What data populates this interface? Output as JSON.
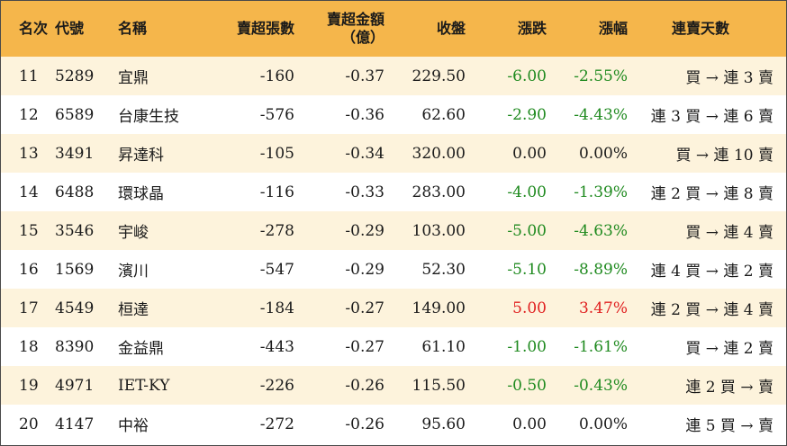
{
  "headers": {
    "rank": "名次",
    "code": "代號",
    "name": "名稱",
    "net_sell_lots": "賣超張數",
    "net_sell_amount_line1": "賣超金額",
    "net_sell_amount_line2": "（億）",
    "close": "收盤",
    "change": "漲跌",
    "change_pct": "漲幅",
    "streak": "連賣天數"
  },
  "rows": [
    {
      "rank": "11",
      "code": "5289",
      "name": "宜鼎",
      "lots": "-160",
      "amount": "-0.37",
      "close": "229.50",
      "change": "-6.00",
      "pct": "-2.55%",
      "dir": "neg",
      "streak": "買 → 連 3 賣"
    },
    {
      "rank": "12",
      "code": "6589",
      "name": "台康生技",
      "lots": "-576",
      "amount": "-0.36",
      "close": "62.60",
      "change": "-2.90",
      "pct": "-4.43%",
      "dir": "neg",
      "streak": "連 3 買 → 連 6 賣"
    },
    {
      "rank": "13",
      "code": "3491",
      "name": "昇達科",
      "lots": "-105",
      "amount": "-0.34",
      "close": "320.00",
      "change": "0.00",
      "pct": "0.00%",
      "dir": "zero",
      "streak": "買 → 連 10 賣"
    },
    {
      "rank": "14",
      "code": "6488",
      "name": "環球晶",
      "lots": "-116",
      "amount": "-0.33",
      "close": "283.00",
      "change": "-4.00",
      "pct": "-1.39%",
      "dir": "neg",
      "streak": "連 2 買 → 連 8 賣"
    },
    {
      "rank": "15",
      "code": "3546",
      "name": "宇峻",
      "lots": "-278",
      "amount": "-0.29",
      "close": "103.00",
      "change": "-5.00",
      "pct": "-4.63%",
      "dir": "neg",
      "streak": "買 → 連 4 賣"
    },
    {
      "rank": "16",
      "code": "1569",
      "name": "濱川",
      "lots": "-547",
      "amount": "-0.29",
      "close": "52.30",
      "change": "-5.10",
      "pct": "-8.89%",
      "dir": "neg",
      "streak": "連 4 買 → 連 2 賣"
    },
    {
      "rank": "17",
      "code": "4549",
      "name": "桓達",
      "lots": "-184",
      "amount": "-0.27",
      "close": "149.00",
      "change": "5.00",
      "pct": "3.47%",
      "dir": "pos",
      "streak": "連 2 買 → 連 4 賣"
    },
    {
      "rank": "18",
      "code": "8390",
      "name": "金益鼎",
      "lots": "-443",
      "amount": "-0.27",
      "close": "61.10",
      "change": "-1.00",
      "pct": "-1.61%",
      "dir": "neg",
      "streak": "買 → 連 2 賣"
    },
    {
      "rank": "19",
      "code": "4971",
      "name": "IET-KY",
      "lots": "-226",
      "amount": "-0.26",
      "close": "115.50",
      "change": "-0.50",
      "pct": "-0.43%",
      "dir": "neg",
      "streak": "連 2 買 → 賣"
    },
    {
      "rank": "20",
      "code": "4147",
      "name": "中裕",
      "lots": "-272",
      "amount": "-0.26",
      "close": "95.60",
      "change": "0.00",
      "pct": "0.00%",
      "dir": "zero",
      "streak": "連 5 買 → 賣"
    }
  ],
  "colors": {
    "header_bg": "#f5b64b",
    "odd_row_bg": "#fdf3dc",
    "up": "#e02020",
    "down": "#1f8a1f"
  }
}
